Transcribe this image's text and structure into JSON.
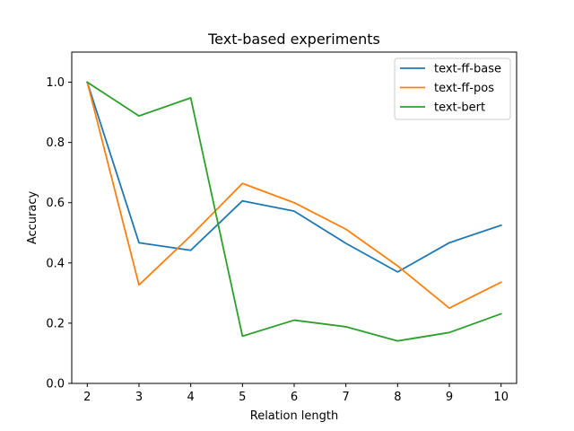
{
  "chart_data": {
    "type": "line",
    "title": "Text-based experiments",
    "xlabel": "Relation length",
    "ylabel": "Accuracy",
    "x": [
      2,
      3,
      4,
      5,
      6,
      7,
      8,
      9,
      10
    ],
    "xlim": [
      1.7,
      10.3
    ],
    "ylim": [
      0.0,
      1.1
    ],
    "xticks": [
      "2",
      "3",
      "4",
      "5",
      "6",
      "7",
      "8",
      "9",
      "10"
    ],
    "yticks": [
      "0.0",
      "0.2",
      "0.4",
      "0.6",
      "0.8",
      "1.0"
    ],
    "legend_position": "top-right",
    "grid": false,
    "series": [
      {
        "name": "text-ff-base",
        "color": "#1f77b4",
        "values": [
          1.0,
          0.467,
          0.442,
          0.606,
          0.572,
          0.465,
          0.37,
          0.467,
          0.525
        ]
      },
      {
        "name": "text-ff-pos",
        "color": "#ff7f0e",
        "values": [
          1.0,
          0.327,
          0.49,
          0.664,
          0.6,
          0.512,
          0.39,
          0.25,
          0.336
        ]
      },
      {
        "name": "text-bert",
        "color": "#2ca02c",
        "values": [
          1.0,
          0.888,
          0.948,
          0.157,
          0.21,
          0.188,
          0.141,
          0.169,
          0.231
        ]
      }
    ]
  }
}
